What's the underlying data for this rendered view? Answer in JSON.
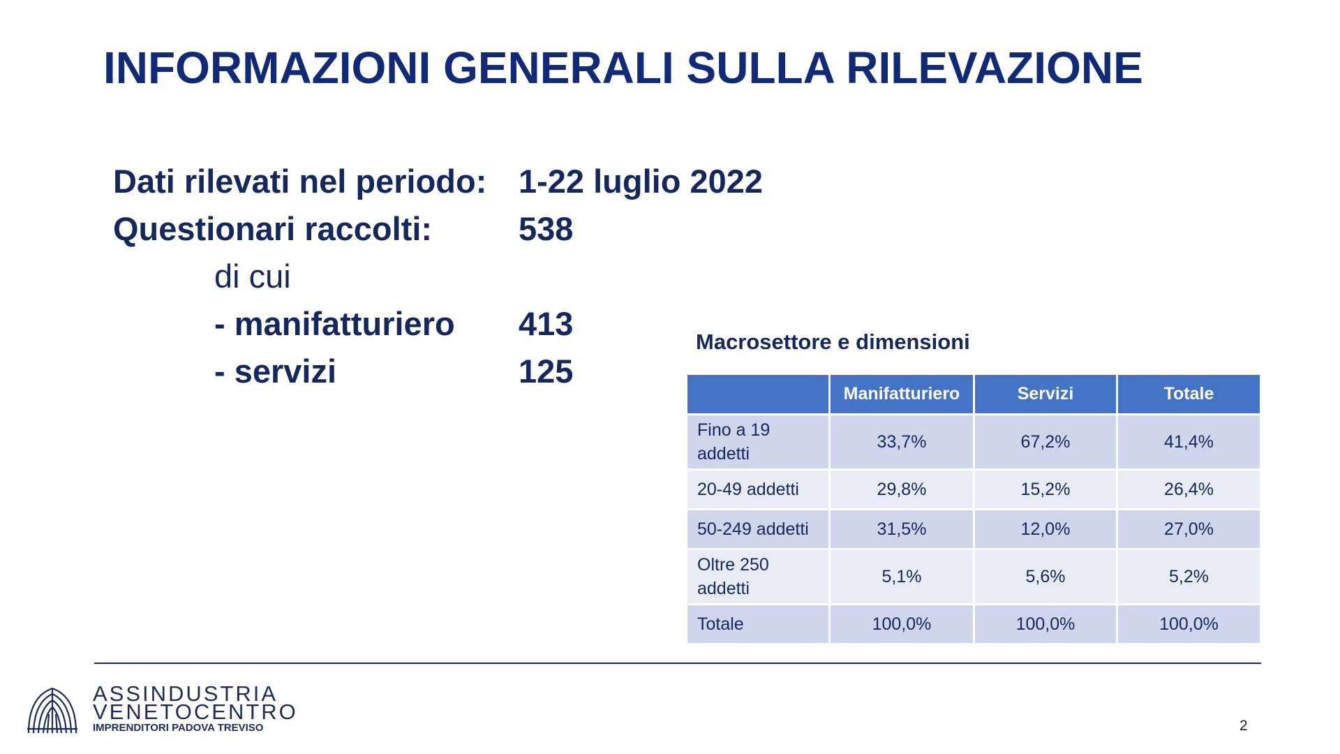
{
  "title": "INFORMAZIONI GENERALI SULLA RILEVAZIONE",
  "info": [
    {
      "label": "Dati rilevati nel periodo:",
      "value": "1-22 luglio 2022"
    },
    {
      "label": "Questionari raccolti:",
      "value": 538
    }
  ],
  "subheading": "di cui",
  "breakdown": [
    {
      "label": "- manifatturiero",
      "value": 413
    },
    {
      "label": "- servizi",
      "value": 125
    }
  ],
  "table": {
    "title": "Macrosettore e dimensioni",
    "header": [
      "Manifatturiero",
      "Servizi",
      "Totale"
    ],
    "rows": [
      [
        "Fino a 19 addetti",
        "33,7%",
        "67,2%",
        "41,4%"
      ],
      [
        "20-49 addetti",
        "29,8%",
        "15,2%",
        "26,4%"
      ],
      [
        "50-249 addetti",
        "31,5%",
        "12,0%",
        "27,0%"
      ],
      [
        "Oltre 250 addetti",
        "5,1%",
        "5,6%",
        "5,2%"
      ],
      [
        "Totale",
        "100,0%",
        "100,0%",
        "100,0%"
      ]
    ]
  },
  "footer": {
    "logo_line1": "ASSINDUSTRIA",
    "logo_line2": "VENETOCENTRO",
    "logo_tagline": "IMPRENDITORI PADOVA TREVISO"
  },
  "page_number": 2
}
